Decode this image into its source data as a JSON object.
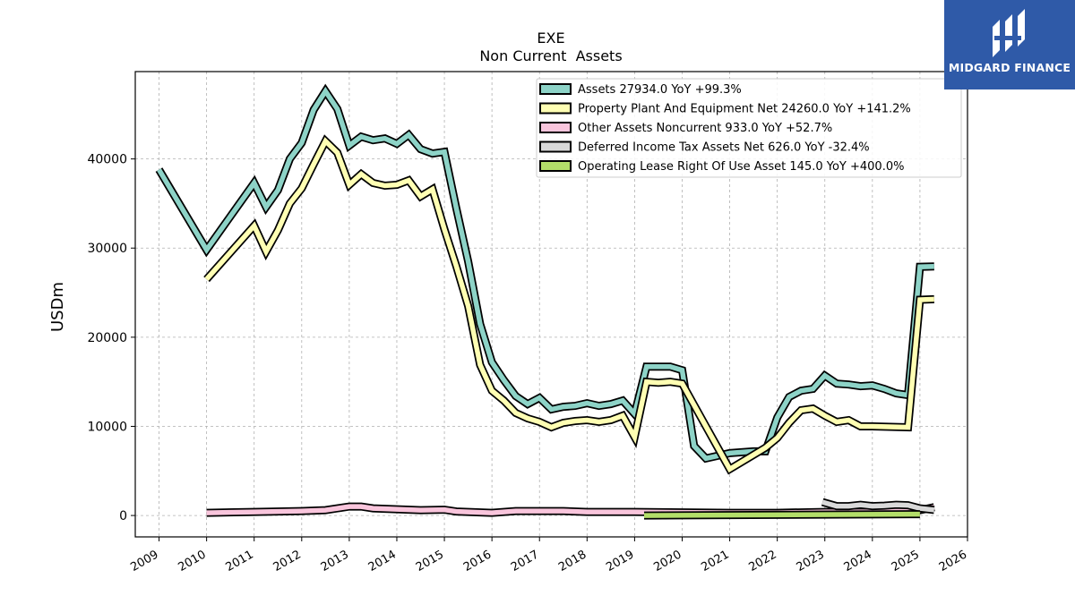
{
  "brand": {
    "name": "MIDGARD FINANCE",
    "color": "#2f5aa8"
  },
  "chart_data": {
    "type": "line",
    "title": "EXE",
    "subtitle": "Non Current  Assets",
    "xlabel": "",
    "ylabel": "USDm",
    "xlim": [
      2008.5,
      2026.0
    ],
    "ylim": [
      -2400,
      49800
    ],
    "x_ticks": [
      2009,
      2010,
      2011,
      2012,
      2013,
      2014,
      2015,
      2016,
      2017,
      2018,
      2019,
      2020,
      2021,
      2022,
      2023,
      2024,
      2025,
      2026
    ],
    "y_ticks": [
      0,
      10000,
      20000,
      30000,
      40000
    ],
    "grid": true,
    "legend_position": "top-right",
    "series": [
      {
        "name": "Assets",
        "legend_label": "Assets  27934.0 YoY +99.3%",
        "color": "#8dd3c7",
        "points": [
          [
            2009.0,
            38800
          ],
          [
            2010.0,
            29800
          ],
          [
            2011.0,
            37300
          ],
          [
            2011.25,
            34600
          ],
          [
            2011.5,
            36500
          ],
          [
            2011.75,
            40000
          ],
          [
            2012.0,
            41800
          ],
          [
            2012.25,
            45500
          ],
          [
            2012.5,
            47600
          ],
          [
            2012.75,
            45600
          ],
          [
            2013.0,
            41500
          ],
          [
            2013.25,
            42500
          ],
          [
            2013.5,
            42100
          ],
          [
            2013.75,
            42300
          ],
          [
            2014.0,
            41700
          ],
          [
            2014.25,
            42700
          ],
          [
            2014.5,
            41100
          ],
          [
            2014.75,
            40600
          ],
          [
            2015.0,
            40800
          ],
          [
            2015.25,
            34500
          ],
          [
            2015.5,
            28500
          ],
          [
            2015.75,
            21500
          ],
          [
            2016.0,
            17200
          ],
          [
            2016.25,
            15200
          ],
          [
            2016.5,
            13400
          ],
          [
            2016.75,
            12500
          ],
          [
            2017.0,
            13200
          ],
          [
            2017.25,
            11900
          ],
          [
            2017.5,
            12200
          ],
          [
            2017.75,
            12300
          ],
          [
            2018.0,
            12600
          ],
          [
            2018.25,
            12300
          ],
          [
            2018.5,
            12500
          ],
          [
            2018.75,
            12900
          ],
          [
            2019.0,
            11400
          ],
          [
            2019.25,
            16700
          ],
          [
            2019.5,
            16700
          ],
          [
            2019.75,
            16700
          ],
          [
            2020.0,
            16300
          ],
          [
            2020.25,
            7800
          ],
          [
            2020.5,
            6400
          ],
          [
            2021.0,
            7000
          ],
          [
            2021.5,
            7200
          ],
          [
            2021.75,
            7200
          ],
          [
            2022.0,
            11000
          ],
          [
            2022.25,
            13300
          ],
          [
            2022.5,
            14000
          ],
          [
            2022.75,
            14200
          ],
          [
            2023.0,
            15700
          ],
          [
            2023.25,
            14800
          ],
          [
            2023.5,
            14700
          ],
          [
            2023.75,
            14500
          ],
          [
            2024.0,
            14600
          ],
          [
            2024.25,
            14200
          ],
          [
            2024.5,
            13700
          ],
          [
            2024.75,
            13500
          ],
          [
            2025.0,
            27900
          ],
          [
            2025.3,
            27934
          ]
        ]
      },
      {
        "name": "Property Plant And Equipment Net",
        "legend_label": "Property Plant And Equipment Net  24260.0 YoY +141.2%",
        "color": "#ffffb3",
        "points": [
          [
            2010.0,
            26500
          ],
          [
            2011.0,
            32500
          ],
          [
            2011.25,
            29600
          ],
          [
            2011.5,
            32000
          ],
          [
            2011.75,
            35000
          ],
          [
            2012.0,
            36700
          ],
          [
            2012.25,
            39400
          ],
          [
            2012.5,
            42000
          ],
          [
            2012.75,
            40700
          ],
          [
            2013.0,
            37100
          ],
          [
            2013.25,
            38300
          ],
          [
            2013.5,
            37300
          ],
          [
            2013.75,
            37000
          ],
          [
            2014.0,
            37100
          ],
          [
            2014.25,
            37600
          ],
          [
            2014.5,
            35800
          ],
          [
            2014.75,
            36600
          ],
          [
            2015.0,
            32100
          ],
          [
            2015.25,
            28000
          ],
          [
            2015.5,
            23500
          ],
          [
            2015.75,
            16900
          ],
          [
            2016.0,
            14000
          ],
          [
            2016.25,
            12900
          ],
          [
            2016.5,
            11500
          ],
          [
            2016.75,
            10900
          ],
          [
            2017.0,
            10500
          ],
          [
            2017.25,
            9900
          ],
          [
            2017.5,
            10400
          ],
          [
            2017.75,
            10600
          ],
          [
            2018.0,
            10700
          ],
          [
            2018.25,
            10500
          ],
          [
            2018.5,
            10700
          ],
          [
            2018.75,
            11200
          ],
          [
            2019.0,
            8800
          ],
          [
            2019.25,
            15000
          ],
          [
            2019.5,
            14900
          ],
          [
            2019.75,
            15000
          ],
          [
            2020.0,
            14800
          ],
          [
            2020.5,
            10000
          ],
          [
            2021.0,
            5200
          ],
          [
            2021.5,
            6800
          ],
          [
            2021.75,
            7600
          ],
          [
            2022.0,
            8700
          ],
          [
            2022.25,
            10400
          ],
          [
            2022.5,
            11800
          ],
          [
            2022.75,
            12000
          ],
          [
            2023.0,
            11200
          ],
          [
            2023.25,
            10500
          ],
          [
            2023.5,
            10700
          ],
          [
            2023.75,
            10000
          ],
          [
            2024.0,
            10000
          ],
          [
            2024.75,
            9900
          ],
          [
            2025.0,
            24200
          ],
          [
            2025.3,
            24260
          ]
        ]
      },
      {
        "name": "Other Assets Noncurrent",
        "legend_label": "Other Assets Noncurrent  933.0 YoY +52.7%",
        "color": "#f9c5dc",
        "points": [
          [
            2010.0,
            300
          ],
          [
            2011.0,
            400
          ],
          [
            2012.0,
            500
          ],
          [
            2012.5,
            600
          ],
          [
            2012.75,
            800
          ],
          [
            2013.0,
            1000
          ],
          [
            2013.25,
            1000
          ],
          [
            2013.5,
            800
          ],
          [
            2014.0,
            700
          ],
          [
            2014.5,
            600
          ],
          [
            2015.0,
            650
          ],
          [
            2015.25,
            450
          ],
          [
            2016.0,
            300
          ],
          [
            2016.5,
            500
          ],
          [
            2017.0,
            500
          ],
          [
            2017.5,
            500
          ],
          [
            2018.0,
            400
          ],
          [
            2019.0,
            400
          ],
          [
            2020.0,
            350
          ],
          [
            2021.0,
            300
          ],
          [
            2022.0,
            300
          ],
          [
            2023.0,
            400
          ],
          [
            2024.0,
            400
          ],
          [
            2025.0,
            600
          ],
          [
            2025.3,
            933
          ]
        ]
      },
      {
        "name": "Deferred Income Tax Assets Net",
        "legend_label": "Deferred Income Tax Assets Net  626.0 YoY -32.4%",
        "color": "#d9d9d9",
        "points": [
          [
            2022.95,
            1500
          ],
          [
            2023.25,
            1050
          ],
          [
            2023.5,
            1050
          ],
          [
            2023.75,
            1200
          ],
          [
            2024.0,
            1050
          ],
          [
            2024.25,
            1100
          ],
          [
            2024.5,
            1200
          ],
          [
            2024.75,
            1150
          ],
          [
            2025.0,
            800
          ],
          [
            2025.3,
            626
          ]
        ]
      },
      {
        "name": "Operating Lease Right Of Use Asset",
        "legend_label": "Operating Lease Right Of Use Asset  145.0 YoY +400.0%",
        "color": "#b3de69",
        "points": [
          [
            2019.2,
            0
          ],
          [
            2025.0,
            145
          ]
        ]
      }
    ]
  }
}
